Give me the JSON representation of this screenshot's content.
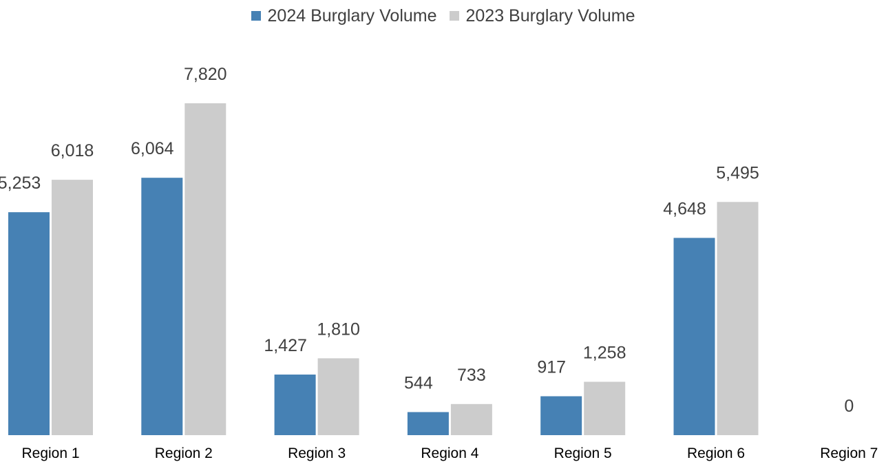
{
  "chart_data": {
    "type": "bar",
    "title": "",
    "xlabel": "",
    "ylabel": "",
    "categories": [
      "Region 1",
      "Region 2",
      "Region 3",
      "Region 4",
      "Region 5",
      "Region 6",
      "Region 7"
    ],
    "series": [
      {
        "name": "2024 Burglary Volume",
        "color": "#4681b4",
        "values": [
          5253,
          6064,
          1427,
          544,
          917,
          4648,
          0
        ],
        "labels": [
          "5,253",
          "6,064",
          "1,427",
          "544",
          "917",
          "4,648",
          "0"
        ]
      },
      {
        "name": "2023 Burglary Volume",
        "color": "#cccccc",
        "values": [
          6018,
          7820,
          1810,
          733,
          1258,
          5495,
          null
        ],
        "labels": [
          "6,018",
          "7,820",
          "1,810",
          "733",
          "1,258",
          "5,495",
          ""
        ]
      }
    ],
    "ylim": [
      0,
      8000
    ],
    "grid": false,
    "legend": "top-center"
  }
}
